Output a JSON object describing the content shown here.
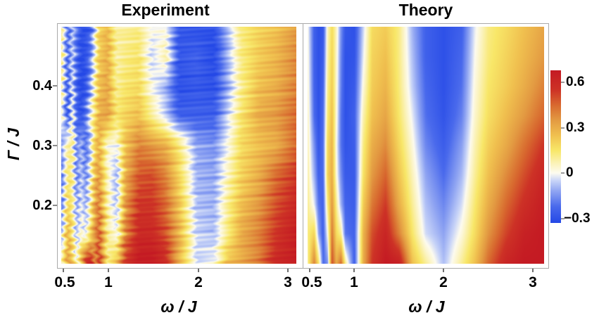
{
  "figure": {
    "panels": [
      {
        "title": "Experiment"
      },
      {
        "title": "Theory"
      }
    ],
    "x_axis": {
      "label": "ω / J",
      "ticks": [
        "0.5",
        "1",
        "2",
        "3"
      ],
      "tick_values": [
        0.5,
        1,
        2,
        3
      ]
    },
    "y_axis": {
      "label": "Γ / J",
      "ticks": [
        "0.4",
        "0.3",
        "0.2"
      ],
      "tick_values": [
        0.4,
        0.3,
        0.2
      ]
    },
    "colorbar": {
      "labels": [
        "0.6",
        "0.3",
        "0",
        "−0.3"
      ],
      "tick_values": [
        0.6,
        0.3,
        0,
        -0.3
      ],
      "vmin": -0.33,
      "vmax": 0.68
    }
  },
  "colormap": {
    "domain": [
      -0.33,
      0.68
    ],
    "stops": [
      [
        -0.33,
        "#2448E6"
      ],
      [
        -0.22,
        "#4A6AEC"
      ],
      [
        -0.12,
        "#8FA4F2"
      ],
      [
        -0.05,
        "#C8D4F8"
      ],
      [
        0.0,
        "#FDFBEF"
      ],
      [
        0.06,
        "#FBF3BC"
      ],
      [
        0.15,
        "#F8E768"
      ],
      [
        0.25,
        "#F0C04F"
      ],
      [
        0.35,
        "#E39A42"
      ],
      [
        0.45,
        "#D8692F"
      ],
      [
        0.55,
        "#CD3226"
      ],
      [
        0.68,
        "#C41A23"
      ]
    ]
  },
  "chart_data": [
    {
      "type": "heatmap",
      "title": "Experiment",
      "xlabel": "ω / J",
      "ylabel": "Γ / J",
      "xlim": [
        0.48,
        3.12
      ],
      "ylim": [
        0.1,
        0.5
      ],
      "zlim": [
        -0.33,
        0.68
      ],
      "noise": true,
      "x": [
        0.48,
        0.55,
        0.6,
        0.65,
        0.7,
        0.75,
        0.8,
        0.85,
        0.9,
        1.0,
        1.1,
        1.2,
        1.35,
        1.5,
        1.65,
        1.8,
        2.0,
        2.2,
        2.35,
        2.5,
        2.7,
        2.9,
        3.12
      ],
      "y": [
        0.5,
        0.45,
        0.4,
        0.35,
        0.3,
        0.25,
        0.2,
        0.15,
        0.1
      ],
      "values": [
        [
          0.1,
          -0.25,
          -0.05,
          -0.2,
          -0.3,
          -0.3,
          -0.25,
          -0.05,
          0.2,
          0.28,
          0.1,
          0.1,
          0.12,
          0.0,
          0.0,
          -0.28,
          -0.3,
          -0.3,
          -0.1,
          0.12,
          0.2,
          0.25,
          0.35
        ],
        [
          0.12,
          -0.25,
          -0.03,
          -0.22,
          -0.32,
          -0.3,
          -0.2,
          0.0,
          0.22,
          0.3,
          0.08,
          0.12,
          0.15,
          -0.05,
          0.08,
          -0.28,
          -0.25,
          -0.32,
          -0.1,
          0.12,
          0.22,
          0.28,
          0.38
        ],
        [
          0.1,
          -0.28,
          0.0,
          -0.25,
          -0.33,
          -0.3,
          -0.15,
          0.05,
          0.25,
          0.32,
          0.1,
          0.15,
          0.18,
          0.0,
          -0.1,
          -0.3,
          -0.28,
          -0.3,
          -0.12,
          0.1,
          0.25,
          0.3,
          0.4
        ],
        [
          0.05,
          -0.3,
          0.05,
          -0.25,
          -0.3,
          -0.2,
          0.0,
          0.15,
          0.3,
          0.33,
          0.15,
          0.2,
          0.25,
          0.1,
          -0.05,
          -0.25,
          -0.25,
          -0.25,
          -0.05,
          0.15,
          0.3,
          0.35,
          0.45
        ],
        [
          -0.15,
          0.08,
          0.12,
          -0.18,
          -0.08,
          -0.22,
          -0.1,
          0.18,
          0.3,
          0.02,
          0.0,
          0.25,
          0.4,
          0.35,
          0.3,
          0.15,
          -0.12,
          -0.15,
          0.0,
          0.18,
          0.25,
          0.3,
          0.45
        ],
        [
          -0.2,
          0.15,
          0.1,
          -0.2,
          -0.05,
          -0.18,
          0.0,
          0.25,
          0.35,
          0.05,
          -0.1,
          0.3,
          0.48,
          0.5,
          0.4,
          0.2,
          -0.1,
          -0.12,
          0.05,
          0.2,
          0.3,
          0.45,
          0.55
        ],
        [
          -0.18,
          0.2,
          0.12,
          -0.15,
          0.0,
          -0.12,
          0.05,
          0.3,
          0.42,
          0.08,
          -0.08,
          0.35,
          0.55,
          0.55,
          0.45,
          0.25,
          -0.08,
          -0.1,
          0.1,
          0.25,
          0.35,
          0.5,
          0.6
        ],
        [
          -0.1,
          0.3,
          0.15,
          -0.1,
          0.05,
          -0.05,
          0.15,
          0.35,
          0.48,
          0.1,
          0.0,
          0.4,
          0.6,
          0.6,
          0.5,
          0.3,
          -0.05,
          -0.08,
          0.12,
          0.3,
          0.4,
          0.55,
          0.65
        ],
        [
          0.05,
          0.35,
          0.25,
          0.0,
          0.3,
          0.6,
          0.65,
          0.35,
          0.55,
          0.1,
          0.25,
          0.55,
          0.68,
          0.68,
          0.6,
          0.3,
          -0.05,
          0.0,
          0.25,
          0.3,
          0.4,
          0.6,
          0.65
        ]
      ]
    },
    {
      "type": "heatmap",
      "title": "Theory",
      "xlabel": "ω / J",
      "ylabel": "Γ / J",
      "xlim": [
        0.48,
        3.12
      ],
      "ylim": [
        0.1,
        0.5
      ],
      "zlim": [
        -0.33,
        0.68
      ],
      "noise": false,
      "x": [
        0.48,
        0.55,
        0.6,
        0.65,
        0.7,
        0.75,
        0.8,
        0.85,
        0.9,
        1.0,
        1.1,
        1.2,
        1.35,
        1.5,
        1.65,
        1.8,
        2.0,
        2.2,
        2.35,
        2.5,
        2.7,
        2.9,
        3.12
      ],
      "y": [
        0.5,
        0.45,
        0.4,
        0.35,
        0.3,
        0.25,
        0.2,
        0.15,
        0.1
      ],
      "values": [
        [
          0.0,
          -0.25,
          -0.3,
          -0.28,
          0.05,
          0.18,
          0.05,
          -0.15,
          -0.28,
          -0.3,
          -0.05,
          0.18,
          0.22,
          0.12,
          -0.1,
          -0.25,
          -0.3,
          -0.25,
          -0.02,
          0.12,
          0.18,
          0.25,
          0.32
        ],
        [
          0.02,
          -0.25,
          -0.3,
          -0.26,
          0.07,
          0.2,
          0.04,
          -0.17,
          -0.3,
          -0.29,
          -0.02,
          0.2,
          0.25,
          0.12,
          -0.08,
          -0.25,
          -0.3,
          -0.23,
          0.0,
          0.13,
          0.2,
          0.27,
          0.35
        ],
        [
          0.03,
          -0.24,
          -0.3,
          -0.24,
          0.1,
          0.22,
          0.03,
          -0.18,
          -0.3,
          -0.27,
          0.02,
          0.22,
          0.28,
          0.13,
          -0.06,
          -0.23,
          -0.3,
          -0.21,
          0.02,
          0.15,
          0.22,
          0.3,
          0.4
        ],
        [
          0.05,
          -0.22,
          -0.3,
          -0.22,
          0.13,
          0.25,
          0.02,
          -0.2,
          -0.3,
          -0.25,
          0.07,
          0.25,
          0.32,
          0.15,
          -0.02,
          -0.21,
          -0.29,
          -0.18,
          0.04,
          0.17,
          0.26,
          0.35,
          0.46
        ],
        [
          0.06,
          -0.15,
          -0.28,
          -0.21,
          0.18,
          0.28,
          0.0,
          -0.2,
          -0.29,
          -0.26,
          0.12,
          0.3,
          0.38,
          0.19,
          0.02,
          -0.17,
          -0.26,
          -0.13,
          0.07,
          0.21,
          0.31,
          0.43,
          0.55
        ],
        [
          0.08,
          -0.1,
          -0.25,
          -0.22,
          0.2,
          0.3,
          0.02,
          -0.16,
          -0.27,
          -0.27,
          0.16,
          0.35,
          0.46,
          0.24,
          0.06,
          -0.12,
          -0.22,
          -0.09,
          0.1,
          0.25,
          0.38,
          0.5,
          0.62
        ],
        [
          0.1,
          -0.02,
          -0.2,
          -0.24,
          0.12,
          0.35,
          0.1,
          -0.1,
          -0.24,
          -0.26,
          0.22,
          0.42,
          0.54,
          0.3,
          0.1,
          -0.08,
          -0.17,
          -0.04,
          0.14,
          0.3,
          0.45,
          0.57,
          0.66
        ],
        [
          0.12,
          0.2,
          -0.12,
          -0.25,
          0.0,
          0.42,
          0.18,
          0.1,
          -0.2,
          -0.24,
          0.28,
          0.5,
          0.62,
          0.4,
          0.15,
          -0.04,
          -0.12,
          0.02,
          0.18,
          0.36,
          0.52,
          0.64,
          0.68
        ],
        [
          0.1,
          0.4,
          0.15,
          -0.22,
          -0.15,
          0.5,
          0.3,
          0.45,
          0.1,
          -0.25,
          0.3,
          0.55,
          0.68,
          0.65,
          0.25,
          0.1,
          -0.08,
          0.1,
          0.25,
          0.45,
          0.62,
          0.68,
          0.68
        ]
      ]
    }
  ]
}
